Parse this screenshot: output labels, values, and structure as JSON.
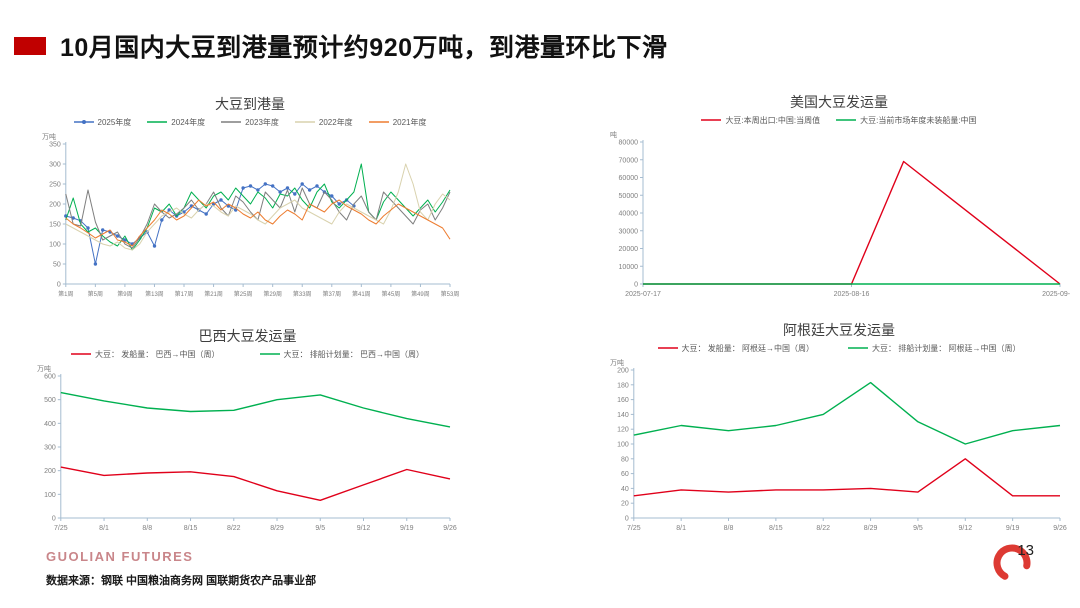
{
  "header": {
    "title": "10月国内大豆到港量预计约920万吨，到港量环比下滑"
  },
  "colors": {
    "accent_red": "#C00000",
    "axis": "#A6BCD0",
    "tick_text": "#7F7F7F"
  },
  "footer": {
    "brand": "GUOLIAN FUTURES",
    "source": "数据来源：钢联  中国粮油商务网  国联期货农产品事业部",
    "page_number": "13"
  },
  "chart_data": [
    {
      "id": "soybean-arrivals",
      "type": "line",
      "title": "大豆到港量",
      "ylabel": "万吨",
      "ylim": [
        0,
        350
      ],
      "ystep": 50,
      "n": 53,
      "xfont": 6,
      "lw": 1,
      "xticks": [
        {
          "i": 0,
          "label": "第1周"
        },
        {
          "i": 4,
          "label": "第5周"
        },
        {
          "i": 8,
          "label": "第9周"
        },
        {
          "i": 12,
          "label": "第13周"
        },
        {
          "i": 16,
          "label": "第17周"
        },
        {
          "i": 20,
          "label": "第21周"
        },
        {
          "i": 24,
          "label": "第25周"
        },
        {
          "i": 28,
          "label": "第29周"
        },
        {
          "i": 32,
          "label": "第33周"
        },
        {
          "i": 36,
          "label": "第37周"
        },
        {
          "i": 40,
          "label": "第41周"
        },
        {
          "i": 44,
          "label": "第45周"
        },
        {
          "i": 48,
          "label": "第49周"
        },
        {
          "i": 52,
          "label": "第53周"
        }
      ],
      "series": [
        {
          "name": "2025年度",
          "color": "#4472C4",
          "marker": true,
          "values": [
            170,
            165,
            158,
            140,
            50,
            135,
            130,
            120,
            110,
            100,
            115,
            130,
            95,
            160,
            185,
            170,
            180,
            195,
            185,
            175,
            200,
            210,
            195,
            185,
            240,
            245,
            235,
            250,
            245,
            230,
            240,
            225,
            250,
            235,
            245,
            230,
            220,
            200,
            210,
            195
          ]
        },
        {
          "name": "2024年度",
          "color": "#00B050",
          "marker": false,
          "values": [
            160,
            215,
            150,
            130,
            140,
            120,
            105,
            95,
            120,
            85,
            110,
            140,
            190,
            180,
            200,
            170,
            190,
            230,
            210,
            190,
            220,
            230,
            210,
            240,
            220,
            200,
            230,
            215,
            190,
            225,
            220,
            240,
            210,
            190,
            230,
            250,
            205,
            190,
            210,
            230,
            300,
            180,
            160,
            205,
            230,
            210,
            190,
            170,
            190,
            210,
            180,
            205,
            235
          ]
        },
        {
          "name": "2023年度",
          "color": "#7F7F7F",
          "marker": false,
          "values": [
            225,
            150,
            145,
            235,
            155,
            110,
            120,
            130,
            100,
            90,
            115,
            150,
            200,
            180,
            165,
            175,
            190,
            210,
            185,
            200,
            230,
            190,
            170,
            220,
            205,
            180,
            160,
            230,
            210,
            190,
            235,
            180,
            240,
            200,
            190,
            230,
            210,
            180,
            160,
            200,
            220,
            180,
            160,
            230,
            210,
            190,
            170,
            150,
            185,
            200,
            160,
            190,
            230
          ]
        },
        {
          "name": "2022年度",
          "color": "#D9D2AE",
          "marker": false,
          "values": [
            150,
            140,
            130,
            120,
            110,
            100,
            95,
            105,
            90,
            85,
            100,
            130,
            150,
            170,
            180,
            190,
            175,
            165,
            185,
            200,
            195,
            180,
            170,
            195,
            185,
            175,
            160,
            150,
            170,
            190,
            200,
            210,
            190,
            180,
            170,
            160,
            150,
            180,
            200,
            190,
            180,
            170,
            160,
            150,
            185,
            230,
            300,
            250,
            180,
            160,
            200,
            225,
            210
          ]
        },
        {
          "name": "2021年度",
          "color": "#ED7D31",
          "marker": false,
          "values": [
            165,
            150,
            140,
            128,
            115,
            125,
            135,
            110,
            105,
            95,
            120,
            140,
            160,
            185,
            175,
            160,
            170,
            190,
            210,
            195,
            205,
            185,
            200,
            190,
            175,
            165,
            180,
            160,
            150,
            170,
            185,
            175,
            160,
            200,
            190,
            180,
            200,
            210,
            195,
            185,
            175,
            160,
            150,
            170,
            185,
            200,
            190,
            180,
            170,
            160,
            150,
            140,
            112
          ]
        }
      ]
    },
    {
      "id": "us-soybean-shipments",
      "type": "line",
      "title": "美国大豆发运量",
      "ylabel": "吨",
      "ylim": [
        0,
        80000
      ],
      "ystep": 10000,
      "n": 9,
      "xfont": 7,
      "lw": 1.4,
      "xticks": [
        {
          "i": 0,
          "label": "2025-07-17"
        },
        {
          "i": 4,
          "label": "2025-08-16"
        },
        {
          "i": 8,
          "label": "2025-09-15"
        }
      ],
      "series": [
        {
          "name": "大豆:本周出口:中国:当周值",
          "color": "#E0001A",
          "marker": false,
          "values": [
            0,
            0,
            0,
            0,
            0,
            69000,
            46000,
            23000,
            0
          ]
        },
        {
          "name": "大豆:当前市场年度未装船量:中国",
          "color": "#00B050",
          "marker": false,
          "values": [
            0,
            0,
            0,
            0,
            0,
            0,
            0,
            0,
            0
          ]
        }
      ]
    },
    {
      "id": "brazil-soybean-shipments",
      "type": "line",
      "title": "巴西大豆发运量",
      "ylabel": "万吨",
      "ylim": [
        0,
        600
      ],
      "ystep": 100,
      "n": 10,
      "xfont": 7,
      "lw": 1.4,
      "xticks": [
        {
          "i": 0,
          "label": "7/25"
        },
        {
          "i": 1,
          "label": "8/1"
        },
        {
          "i": 2,
          "label": "8/8"
        },
        {
          "i": 3,
          "label": "8/15"
        },
        {
          "i": 4,
          "label": "8/22"
        },
        {
          "i": 5,
          "label": "8/29"
        },
        {
          "i": 6,
          "label": "9/5"
        },
        {
          "i": 7,
          "label": "9/12"
        },
        {
          "i": 8,
          "label": "9/19"
        },
        {
          "i": 9,
          "label": "9/26"
        }
      ],
      "series": [
        {
          "name": "大豆： 发船量： 巴西→中国（周）",
          "color": "#E0001A",
          "marker": false,
          "values": [
            215,
            180,
            190,
            195,
            175,
            115,
            75,
            140,
            205,
            165
          ]
        },
        {
          "name": "大豆： 排船计划量： 巴西→中国（周）",
          "color": "#00B050",
          "marker": false,
          "values": [
            530,
            495,
            465,
            450,
            455,
            500,
            520,
            465,
            420,
            385
          ]
        }
      ]
    },
    {
      "id": "argentina-soybean-shipments",
      "type": "line",
      "title": "阿根廷大豆发运量",
      "ylabel": "万吨",
      "ylim": [
        0,
        200
      ],
      "ystep": 20,
      "n": 10,
      "xfont": 7,
      "lw": 1.4,
      "xticks": [
        {
          "i": 0,
          "label": "7/25"
        },
        {
          "i": 1,
          "label": "8/1"
        },
        {
          "i": 2,
          "label": "8/8"
        },
        {
          "i": 3,
          "label": "8/15"
        },
        {
          "i": 4,
          "label": "8/22"
        },
        {
          "i": 5,
          "label": "8/29"
        },
        {
          "i": 6,
          "label": "9/5"
        },
        {
          "i": 7,
          "label": "9/12"
        },
        {
          "i": 8,
          "label": "9/19"
        },
        {
          "i": 9,
          "label": "9/26"
        }
      ],
      "series": [
        {
          "name": "大豆： 发船量： 阿根廷→中国（周）",
          "color": "#E0001A",
          "marker": false,
          "values": [
            30,
            38,
            35,
            38,
            38,
            40,
            35,
            80,
            30,
            30
          ]
        },
        {
          "name": "大豆： 排船计划量： 阿根廷→中国（周）",
          "color": "#00B050",
          "marker": false,
          "values": [
            112,
            125,
            118,
            125,
            140,
            183,
            130,
            100,
            118,
            125
          ]
        }
      ]
    }
  ]
}
